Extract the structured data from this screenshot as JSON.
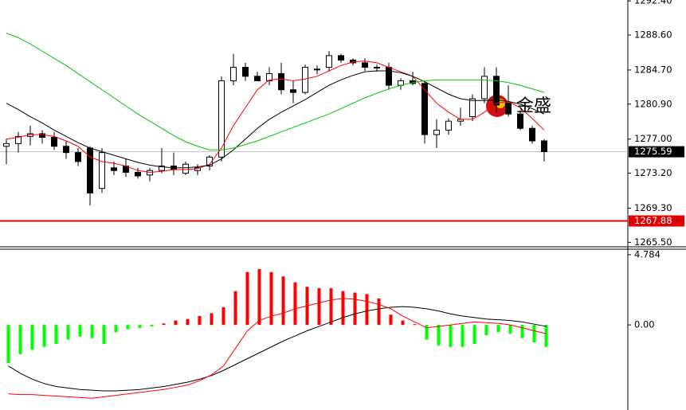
{
  "chart_data": [
    {
      "type": "candlestick",
      "open": [
        1276.2,
        1276.5,
        1277.3,
        1277.6,
        1277.2,
        1276.2,
        1275.5,
        1276.0,
        1271.5,
        1273.8,
        1274.0,
        1273.3,
        1273.0,
        1273.5,
        1274.0,
        1273.2,
        1273.5,
        1274.0,
        1275.0,
        1283.5,
        1285.0,
        1284.0,
        1283.5,
        1284.3,
        1282.5,
        1282.2,
        1284.8,
        1285.0,
        1286.3,
        1285.8,
        1285.5,
        1285.0,
        1285.0,
        1283.0,
        1283.5,
        1283.2,
        1277.5,
        1278.0,
        1279.0,
        1279.5,
        1281.5,
        1284.0,
        1281.0,
        1279.8,
        1278.2,
        1276.8
      ],
      "high": [
        1277.0,
        1277.8,
        1278.5,
        1278.0,
        1277.8,
        1276.8,
        1276.0,
        1276.2,
        1276.0,
        1274.5,
        1274.8,
        1273.8,
        1273.8,
        1276.0,
        1275.5,
        1274.5,
        1274.2,
        1275.2,
        1284.0,
        1286.5,
        1285.5,
        1284.5,
        1285.0,
        1285.5,
        1283.5,
        1285.3,
        1285.2,
        1286.8,
        1286.5,
        1286.0,
        1286.0,
        1285.3,
        1285.5,
        1283.8,
        1284.5,
        1283.5,
        1279.2,
        1279.3,
        1280.5,
        1282.0,
        1285.0,
        1285.0,
        1283.0,
        1280.2,
        1278.5,
        1277.0
      ],
      "low": [
        1274.2,
        1275.5,
        1276.3,
        1276.5,
        1275.8,
        1274.8,
        1274.0,
        1269.6,
        1271.0,
        1273.0,
        1272.8,
        1272.6,
        1272.3,
        1273.2,
        1273.0,
        1273.0,
        1273.0,
        1273.5,
        1274.5,
        1283.0,
        1283.5,
        1283.5,
        1283.0,
        1282.0,
        1281.0,
        1282.0,
        1284.2,
        1284.5,
        1285.5,
        1285.2,
        1284.6,
        1284.5,
        1282.5,
        1282.5,
        1283.0,
        1276.5,
        1276.0,
        1277.5,
        1278.5,
        1279.0,
        1281.0,
        1280.0,
        1279.5,
        1278.0,
        1276.5,
        1274.5
      ],
      "close": [
        1276.5,
        1277.3,
        1277.6,
        1277.2,
        1276.2,
        1275.5,
        1274.5,
        1271.0,
        1275.5,
        1273.5,
        1273.3,
        1272.9,
        1273.5,
        1274.0,
        1273.6,
        1274.2,
        1273.8,
        1275.0,
        1283.5,
        1285.0,
        1284.0,
        1283.5,
        1284.3,
        1282.5,
        1282.2,
        1285.0,
        1284.8,
        1286.3,
        1285.8,
        1285.5,
        1285.0,
        1285.0,
        1283.0,
        1283.5,
        1283.2,
        1277.5,
        1278.0,
        1279.0,
        1279.2,
        1281.5,
        1284.0,
        1280.8,
        1279.8,
        1278.2,
        1276.8,
        1275.6
      ],
      "up_color": "#ffffff",
      "down_color": "#000000",
      "lines": [
        {
          "color": "#ff0000",
          "values": [
            1277.0,
            1277.2,
            1277.5,
            1277.5,
            1277.3,
            1276.8,
            1276.2,
            1275.0,
            1274.5,
            1274.3,
            1274.0,
            1273.5,
            1273.3,
            1273.4,
            1273.6,
            1273.6,
            1273.7,
            1274.2,
            1276.0,
            1278.5,
            1280.5,
            1282.5,
            1283.6,
            1283.7,
            1283.5,
            1283.7,
            1284.0,
            1284.6,
            1285.2,
            1285.6,
            1285.7,
            1285.5,
            1285.0,
            1284.5,
            1284.0,
            1282.5,
            1281.0,
            1280.0,
            1279.2,
            1279.2,
            1280.0,
            1281.0,
            1281.2,
            1280.5,
            1279.3,
            1278.0
          ]
        },
        {
          "color": "#000000",
          "values": [
            1281.0,
            1280.3,
            1279.5,
            1278.8,
            1278.0,
            1277.3,
            1276.6,
            1276.0,
            1275.6,
            1275.2,
            1274.8,
            1274.4,
            1274.1,
            1273.9,
            1273.8,
            1273.8,
            1273.9,
            1274.1,
            1274.8,
            1275.8,
            1277.0,
            1278.2,
            1279.2,
            1280.0,
            1280.7,
            1281.4,
            1282.2,
            1283.0,
            1283.6,
            1284.1,
            1284.5,
            1284.6,
            1284.6,
            1284.4,
            1284.0,
            1283.4,
            1282.7,
            1282.0,
            1281.5,
            1281.3,
            1281.3,
            1281.4,
            1281.2,
            1280.9,
            1280.4,
            1279.8
          ]
        },
        {
          "color": "#00c800",
          "values": [
            1288.8,
            1288.3,
            1287.6,
            1286.8,
            1286.0,
            1285.2,
            1284.3,
            1283.4,
            1282.5,
            1281.6,
            1280.7,
            1279.8,
            1279.0,
            1278.2,
            1277.4,
            1276.7,
            1276.2,
            1275.8,
            1275.8,
            1276.0,
            1276.4,
            1276.8,
            1277.3,
            1277.8,
            1278.3,
            1278.8,
            1279.3,
            1279.8,
            1280.4,
            1281.0,
            1281.6,
            1282.1,
            1282.6,
            1283.0,
            1283.3,
            1283.5,
            1283.6,
            1283.6,
            1283.6,
            1283.6,
            1283.6,
            1283.5,
            1283.3,
            1283.0,
            1282.6,
            1282.2
          ]
        }
      ],
      "ylim": [
        1265.0,
        1292.5
      ],
      "yticks": [
        {
          "value": 1292.4,
          "label": "1292.40"
        },
        {
          "value": 1288.6,
          "label": "1288.60"
        },
        {
          "value": 1284.7,
          "label": "1284.70"
        },
        {
          "value": 1280.9,
          "label": "1280.90"
        },
        {
          "value": 1277.0,
          "label": "1277.00"
        },
        {
          "value": 1273.2,
          "label": "1273.20"
        },
        {
          "value": 1269.3,
          "label": "1269.30"
        },
        {
          "value": 1265.5,
          "label": "1265.50"
        }
      ],
      "price_lines": [
        {
          "value": 1275.59,
          "color": "#c0c0c0",
          "tag_color": "#000000"
        },
        {
          "value": 1267.88,
          "color": "#e00000",
          "tag_color": "#e00000"
        }
      ],
      "watermark": "金盛"
    },
    {
      "type": "macd",
      "values": [
        -2.6,
        -2.0,
        -1.7,
        -1.5,
        -1.3,
        -1.0,
        -0.8,
        -0.9,
        -1.3,
        -0.5,
        -0.3,
        -0.2,
        -0.1,
        0.1,
        0.3,
        0.4,
        0.6,
        0.8,
        1.2,
        2.3,
        3.6,
        3.8,
        3.6,
        3.3,
        2.9,
        2.6,
        2.5,
        2.5,
        2.3,
        2.2,
        2.1,
        1.8,
        0.7,
        0.3,
        0.05,
        -1.0,
        -1.4,
        -1.5,
        -1.5,
        -1.3,
        -0.7,
        -0.5,
        -0.6,
        -0.9,
        -1.2,
        -1.5
      ],
      "positive_color": "#ff0000",
      "negative_color": "#00ff00",
      "lines": [
        {
          "color": "#000000",
          "values": [
            -2.8,
            -3.3,
            -3.7,
            -4.0,
            -4.2,
            -4.3,
            -4.4,
            -4.45,
            -4.5,
            -4.5,
            -4.45,
            -4.4,
            -4.3,
            -4.2,
            -4.05,
            -3.9,
            -3.7,
            -3.45,
            -3.1,
            -2.7,
            -2.3,
            -1.9,
            -1.5,
            -1.1,
            -0.75,
            -0.4,
            -0.1,
            0.2,
            0.5,
            0.75,
            0.95,
            1.1,
            1.2,
            1.25,
            1.2,
            1.1,
            0.95,
            0.75,
            0.6,
            0.5,
            0.4,
            0.35,
            0.3,
            0.2,
            0.05,
            -0.1
          ]
        },
        {
          "color": "#ff0000",
          "values": [
            -4.7,
            -4.75,
            -4.75,
            -4.8,
            -4.85,
            -4.9,
            -4.95,
            -5.0,
            -4.9,
            -4.8,
            -4.7,
            -4.6,
            -4.5,
            -4.4,
            -4.25,
            -4.1,
            -3.8,
            -3.4,
            -2.8,
            -1.6,
            -0.4,
            0.3,
            0.6,
            0.8,
            1.1,
            1.3,
            1.5,
            1.7,
            1.8,
            1.75,
            1.6,
            1.4,
            1.1,
            0.6,
            0.2,
            -0.2,
            -0.1,
            0.0,
            0.1,
            0.2,
            0.15,
            0.1,
            0.0,
            -0.2,
            -0.4,
            -0.6
          ]
        }
      ],
      "ylim": [
        -5.8,
        5.16
      ],
      "yticks": [
        4.784,
        {
          "value": 0,
          "label": "0.00"
        }
      ]
    }
  ]
}
